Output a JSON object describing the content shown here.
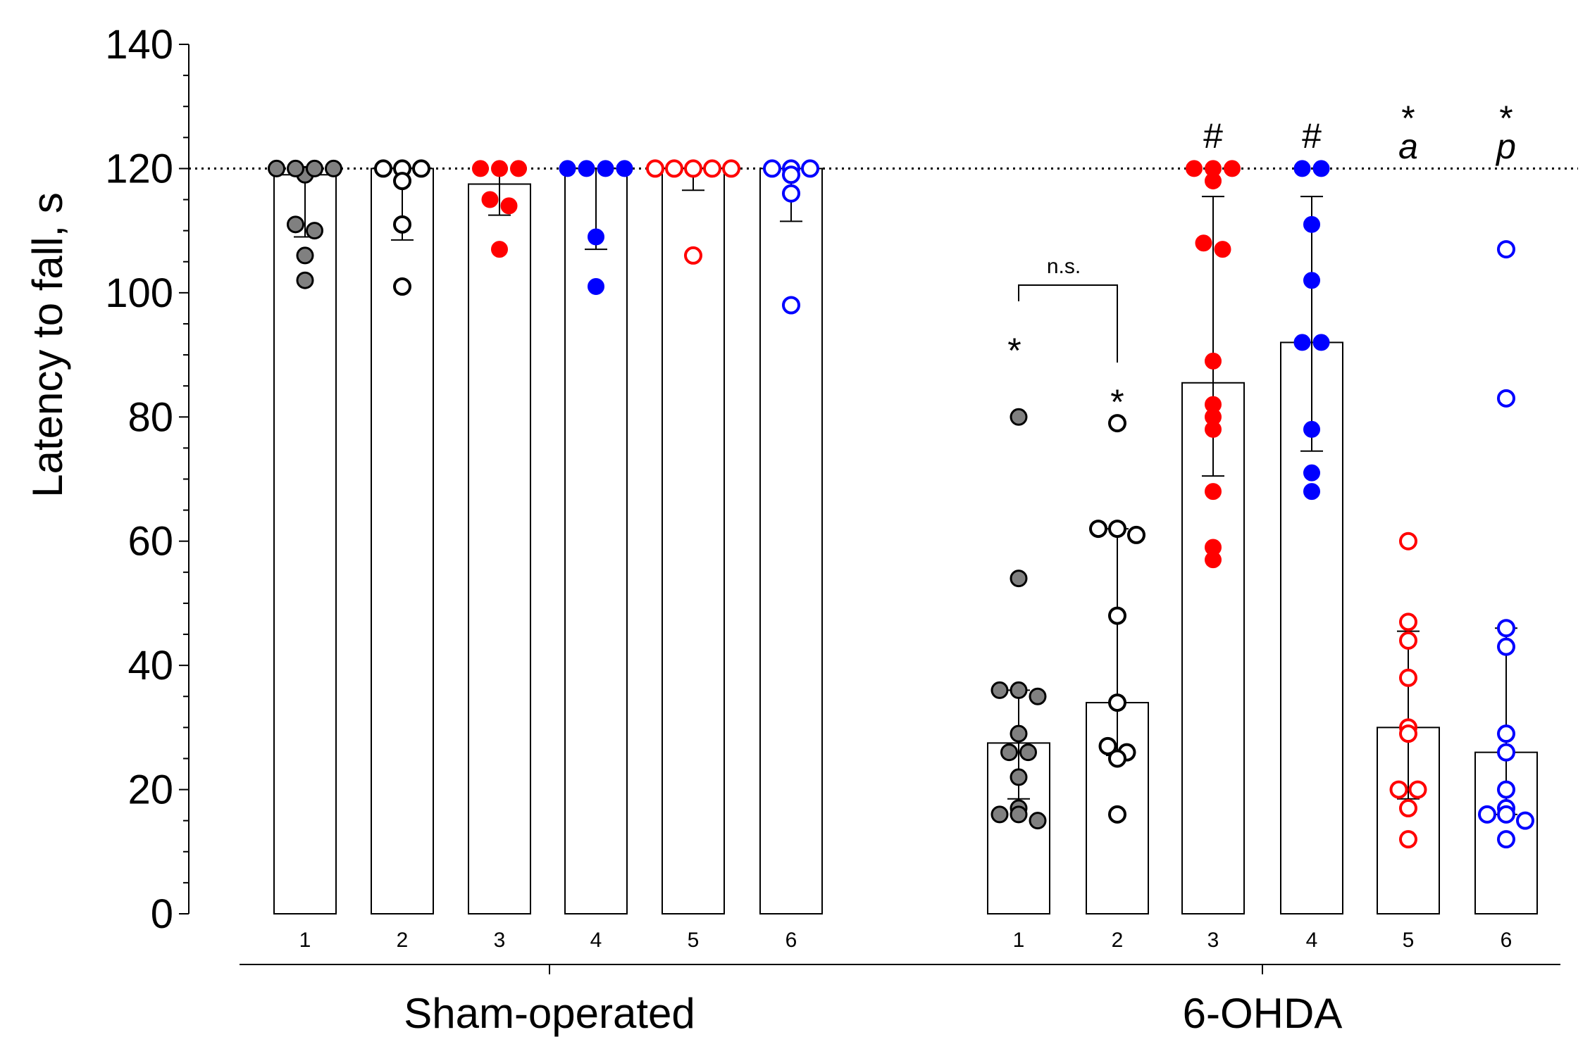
{
  "chart_data": {
    "type": "bar",
    "ylabel": "Latency to fall, s",
    "ylim": [
      0,
      140
    ],
    "yticks": [
      0,
      20,
      40,
      60,
      80,
      100,
      120,
      140
    ],
    "reference_line": 120,
    "groups": [
      {
        "name": "Sham-operated",
        "bars": [
          {
            "label": "1",
            "mean": 119,
            "err_low": 109,
            "err_high": 120,
            "marker": "filled-gray",
            "points": [
              119,
              120,
              120,
              120,
              120,
              111,
              110,
              106,
              102
            ]
          },
          {
            "label": "2",
            "mean": 120,
            "err_low": 108.5,
            "err_high": 120,
            "marker": "open-black",
            "points": [
              120,
              120,
              118,
              120,
              111,
              101
            ]
          },
          {
            "label": "3",
            "mean": 117.5,
            "err_low": 112.5,
            "err_high": 120,
            "marker": "filled-red",
            "points": [
              120,
              120,
              120,
              115,
              114,
              107
            ]
          },
          {
            "label": "4",
            "mean": 120,
            "err_low": 107,
            "err_high": 120,
            "marker": "filled-blue",
            "points": [
              120,
              120,
              120,
              120,
              109,
              101
            ]
          },
          {
            "label": "5",
            "mean": 120,
            "err_low": 116.5,
            "err_high": 120,
            "marker": "open-red",
            "points": [
              120,
              120,
              120,
              120,
              120,
              106
            ]
          },
          {
            "label": "6",
            "mean": 120,
            "err_low": 111.5,
            "err_high": 120,
            "marker": "open-blue",
            "points": [
              120,
              120,
              120,
              119,
              116,
              98
            ]
          }
        ]
      },
      {
        "name": "6-OHDA",
        "bars": [
          {
            "label": "1",
            "mean": 27.5,
            "err_low": 18.5,
            "err_high": 36,
            "marker": "filled-gray",
            "points": [
              80,
              54,
              36,
              36,
              35,
              29,
              26,
              26,
              22,
              17,
              16,
              16,
              15
            ]
          },
          {
            "label": "2",
            "mean": 34,
            "err_low": 25.5,
            "err_high": 62,
            "marker": "open-black",
            "points": [
              79,
              62,
              62,
              61,
              48,
              34,
              27,
              26,
              25,
              16
            ]
          },
          {
            "label": "3",
            "mean": 85.5,
            "err_low": 70.5,
            "err_high": 115.5,
            "marker": "filled-red",
            "points": [
              120,
              120,
              120,
              118,
              108,
              107,
              89,
              82,
              80,
              78,
              68,
              59,
              57
            ]
          },
          {
            "label": "4",
            "mean": 92,
            "err_low": 74.5,
            "err_high": 115.5,
            "marker": "filled-blue",
            "points": [
              120,
              120,
              111,
              102,
              92,
              92,
              78,
              71,
              68
            ]
          },
          {
            "label": "5",
            "mean": 30,
            "err_low": 18.5,
            "err_high": 45.5,
            "marker": "open-red",
            "points": [
              60,
              47,
              44,
              38,
              30,
              29,
              20,
              20,
              17,
              12
            ]
          },
          {
            "label": "6",
            "mean": 26,
            "err_low": 16,
            "err_high": 46,
            "marker": "open-blue",
            "points": [
              107,
              83,
              46,
              43,
              29,
              26,
              20,
              17,
              16,
              16,
              15,
              12
            ]
          }
        ]
      }
    ],
    "annotations": {
      "ohda_1": "*",
      "ohda_2": "*",
      "ohda_3": "#",
      "ohda_4": "#",
      "ohda_5_star": "*",
      "ohda_5_letter": "a",
      "ohda_6_star": "*",
      "ohda_6_letter": "p",
      "ns_bracket": "n.s."
    },
    "colors": {
      "filled-gray": "#808080",
      "black": "#000000",
      "red": "#ff0000",
      "blue": "#0000ff",
      "bar_edge": "#000000",
      "bar_fill": "#ffffff"
    }
  }
}
